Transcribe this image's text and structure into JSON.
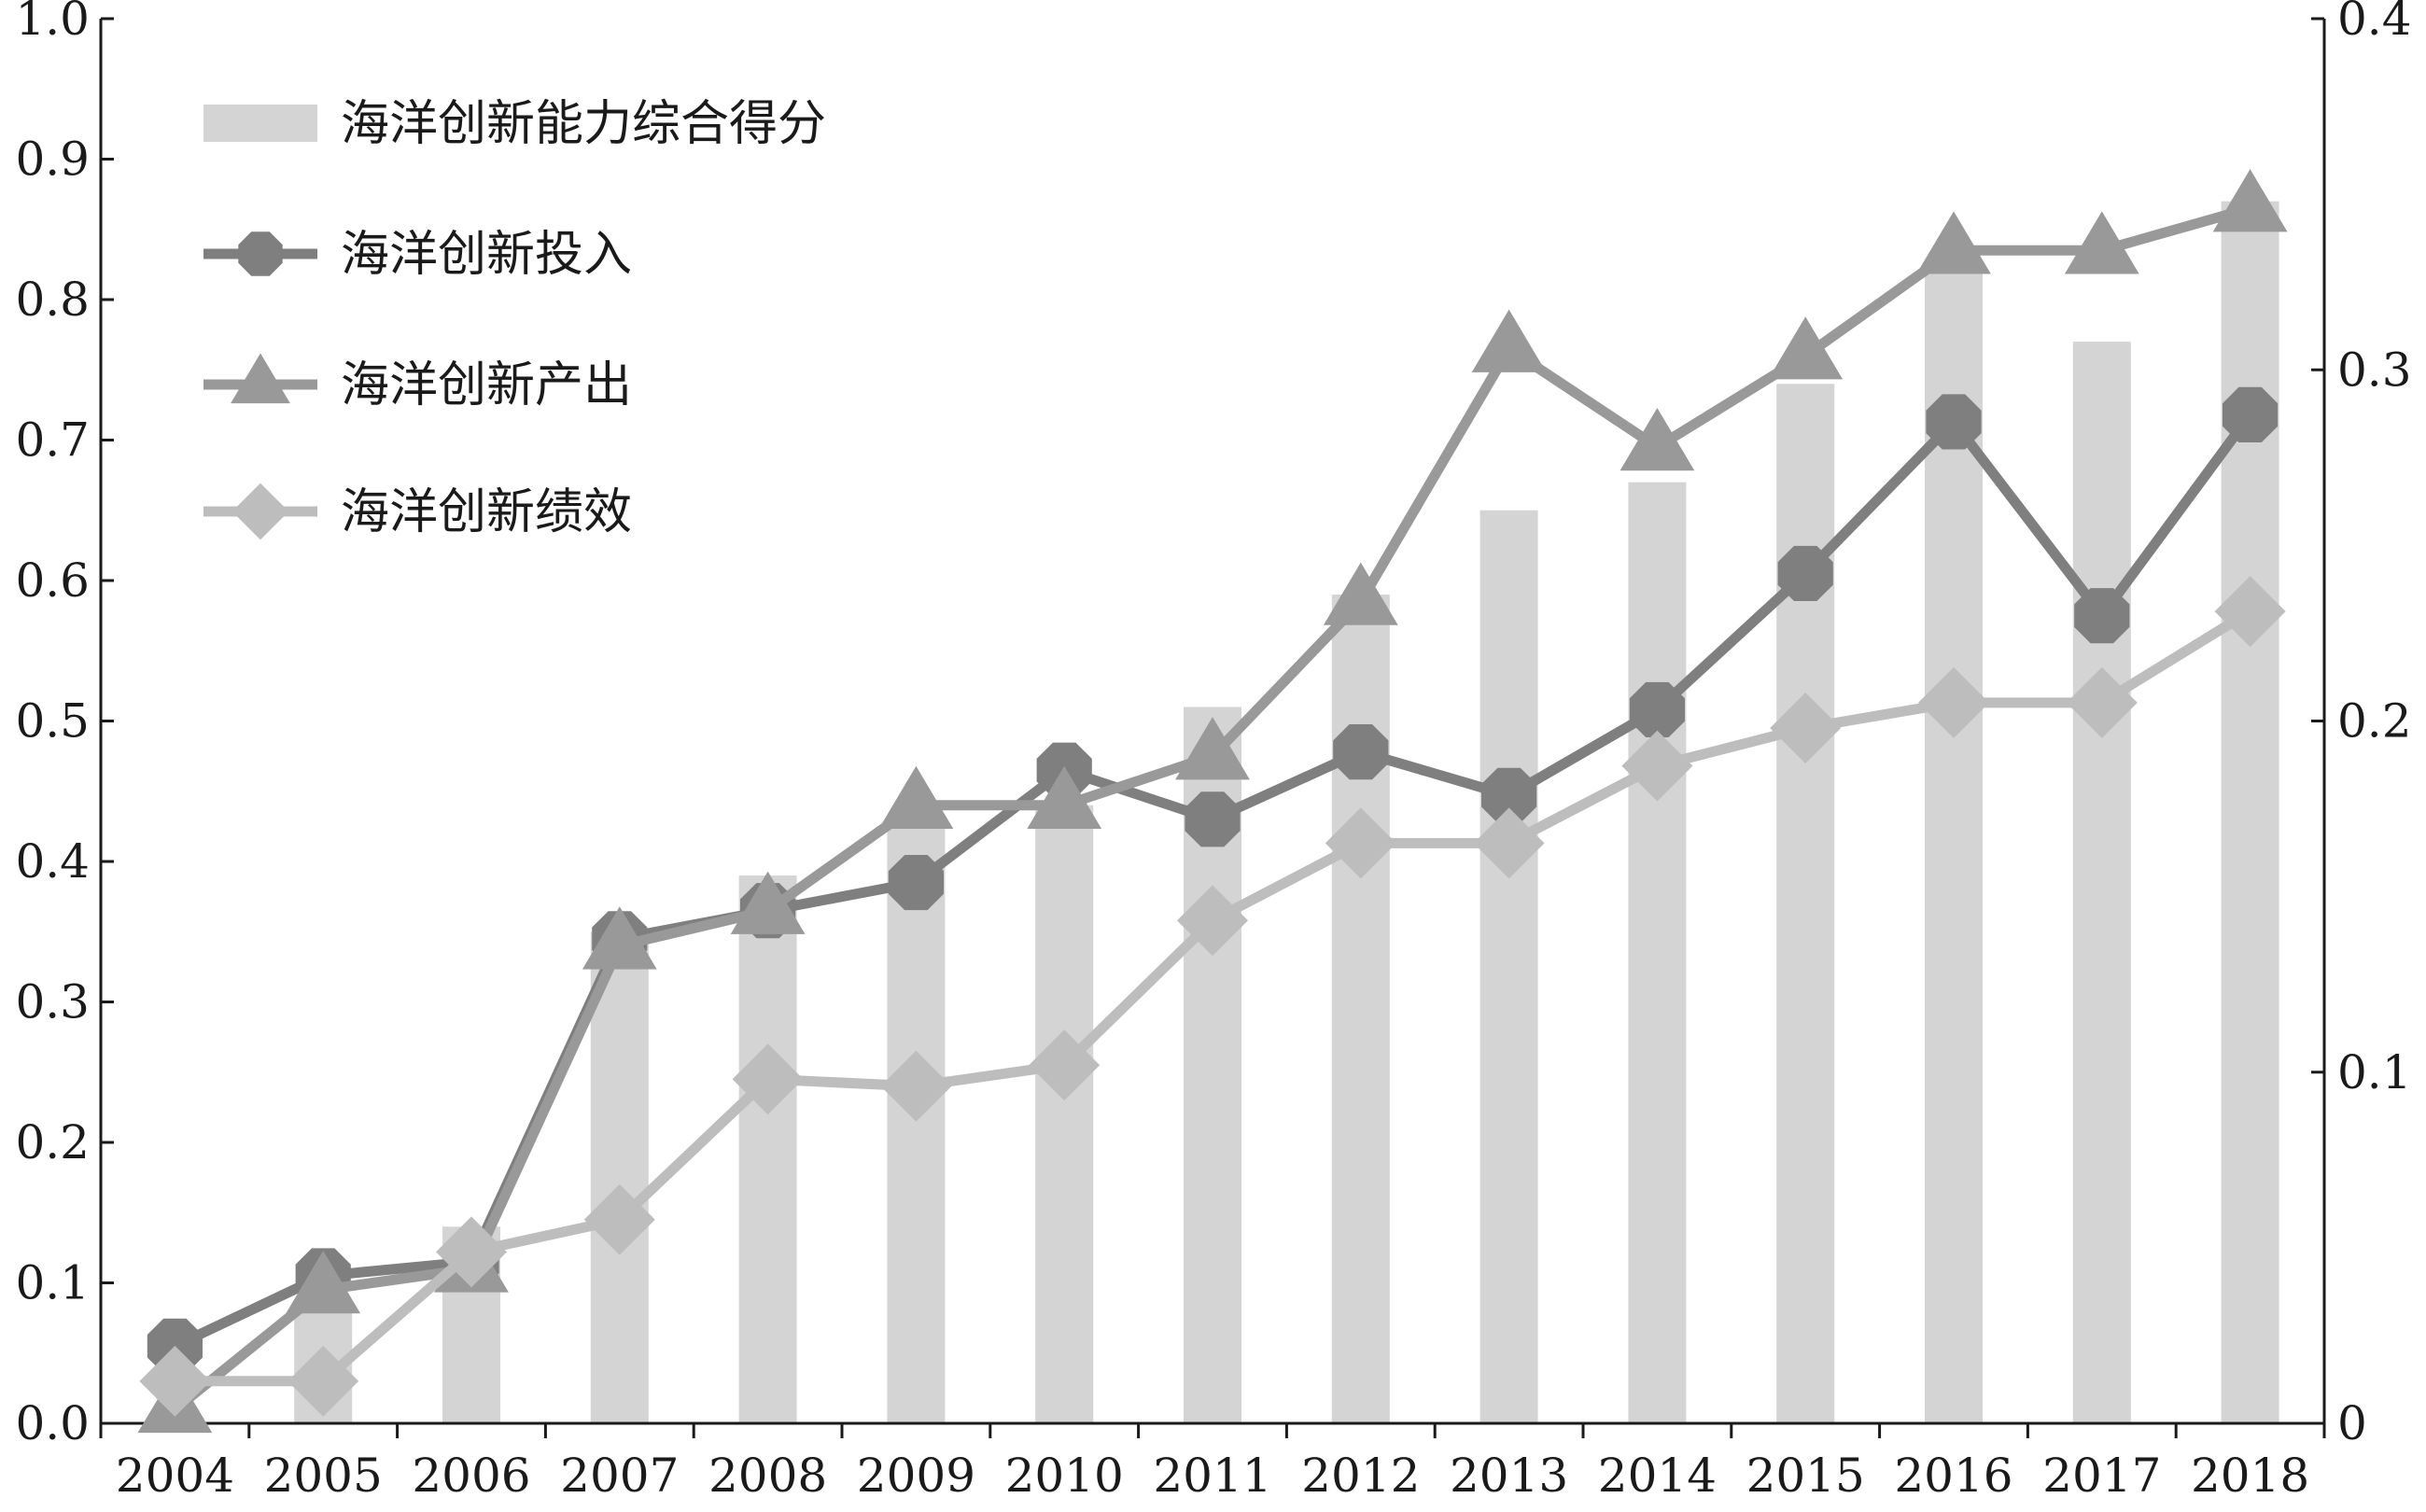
{
  "chart_data": {
    "type": "bar+line",
    "title": "",
    "xlabel": "",
    "ylabel": "",
    "categories": [
      "2004",
      "2005",
      "2006",
      "2007",
      "2008",
      "2009",
      "2010",
      "2011",
      "2012",
      "2013",
      "2014",
      "2015",
      "2016",
      "2017",
      "2018"
    ],
    "ylim_left": [
      0,
      1.0
    ],
    "ylim_right": [
      0,
      0.4
    ],
    "yticks_left": [
      "0.0",
      "0.1",
      "0.2",
      "0.3",
      "0.4",
      "0.5",
      "0.6",
      "0.7",
      "0.8",
      "0.9",
      "1.0"
    ],
    "yticks_right": [
      "0",
      "0.1",
      "0.2",
      "0.3",
      "0.4"
    ],
    "grid": false,
    "legend_position": "top-left",
    "series": [
      {
        "name": "海洋创新能力综合得分",
        "type": "bar",
        "axis": "left",
        "color": "#d4d4d4",
        "values": [
          0.004,
          0.08,
          0.14,
          0.35,
          0.39,
          0.43,
          0.44,
          0.51,
          0.59,
          0.65,
          0.67,
          0.74,
          0.82,
          0.77,
          0.87
        ]
      },
      {
        "name": "海洋创新投入",
        "type": "line",
        "axis": "left",
        "marker": "octagon",
        "color": "#7f7f7f",
        "values": [
          0.055,
          0.105,
          0.115,
          0.345,
          0.365,
          0.385,
          0.465,
          0.43,
          0.478,
          0.447,
          0.508,
          0.605,
          0.713,
          0.575,
          0.718
        ]
      },
      {
        "name": "海洋创新产出",
        "type": "line",
        "axis": "left",
        "marker": "triangle",
        "color": "#999999",
        "values": [
          0.01,
          0.095,
          0.11,
          0.34,
          0.365,
          0.44,
          0.44,
          0.475,
          0.585,
          0.765,
          0.695,
          0.76,
          0.835,
          0.835,
          0.865
        ]
      },
      {
        "name": "海洋创新绩效",
        "type": "line",
        "axis": "left",
        "marker": "diamond",
        "color": "#bdbdbd",
        "values": [
          0.03,
          0.03,
          0.122,
          0.145,
          0.245,
          0.24,
          0.255,
          0.358,
          0.413,
          0.413,
          0.468,
          0.495,
          0.513,
          0.513,
          0.578
        ]
      }
    ]
  }
}
